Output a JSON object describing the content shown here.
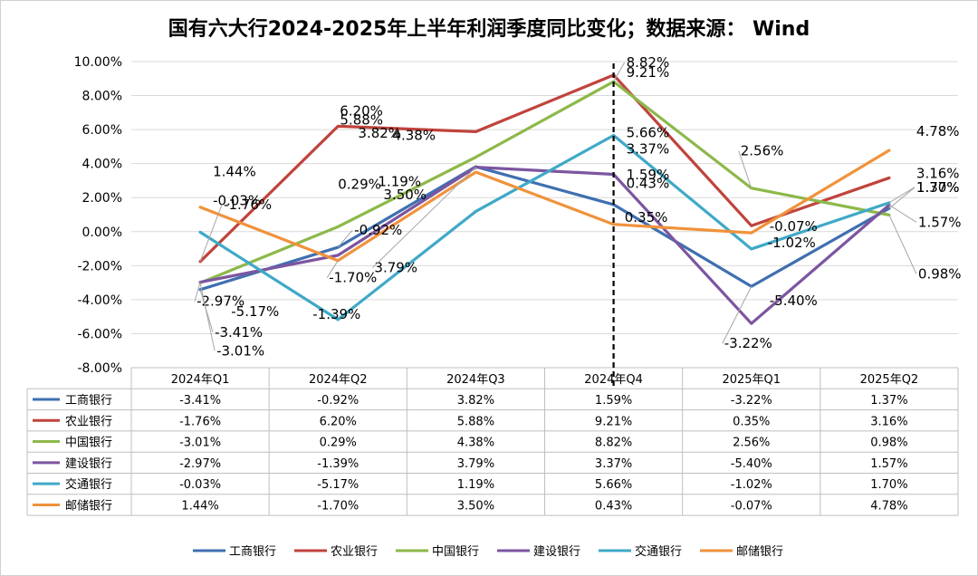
{
  "chart_data": {
    "type": "line",
    "title": "国有六大行2024-2025年上半年利润季度同比变化；数据来源： Wind",
    "categories": [
      "2024年Q1",
      "2024年Q2",
      "2024年Q3",
      "2024年Q4",
      "2025年Q1",
      "2025年Q2"
    ],
    "ylim": [
      -8,
      10
    ],
    "yticks": [
      "10.00%",
      "8.00%",
      "6.00%",
      "4.00%",
      "2.00%",
      "0.00%",
      "-2.00%",
      "-4.00%",
      "-6.00%",
      "-8.00%"
    ],
    "grid": true,
    "legend_position": "bottom",
    "series": [
      {
        "name": "工商银行",
        "color": "#3f6fb0",
        "values": [
          -3.41,
          -0.92,
          3.82,
          1.59,
          -3.22,
          1.37
        ],
        "labels": [
          "-3.41%",
          "-0.92%",
          "3.82%",
          "1.59%",
          "-3.22%",
          "1.37%"
        ]
      },
      {
        "name": "农业银行",
        "color": "#c0433c",
        "values": [
          -1.76,
          6.2,
          5.88,
          9.21,
          0.35,
          3.16
        ],
        "labels": [
          "-1.76%",
          "6.20%",
          "5.88%",
          "9.21%",
          "0.35%",
          "3.16%"
        ]
      },
      {
        "name": "中国银行",
        "color": "#8db84a",
        "values": [
          -3.01,
          0.29,
          4.38,
          8.82,
          2.56,
          0.98
        ],
        "labels": [
          "-3.01%",
          "0.29%",
          "4.38%",
          "8.82%",
          "2.56%",
          "0.98%"
        ]
      },
      {
        "name": "建设银行",
        "color": "#7c55a0",
        "values": [
          -2.97,
          -1.39,
          3.79,
          3.37,
          -5.4,
          1.57
        ],
        "labels": [
          "-2.97%",
          "-1.39%",
          "3.79%",
          "3.37%",
          "-5.40%",
          "1.57%"
        ]
      },
      {
        "name": "交通银行",
        "color": "#3fa9c7",
        "values": [
          -0.03,
          -5.17,
          1.19,
          5.66,
          -1.02,
          1.7
        ],
        "labels": [
          "-0.03%",
          "-5.17%",
          "1.19%",
          "5.66%",
          "-1.02%",
          "1.70%"
        ]
      },
      {
        "name": "邮储银行",
        "color": "#f0923b",
        "values": [
          1.44,
          -1.7,
          3.5,
          0.43,
          -0.07,
          4.78
        ],
        "labels": [
          "1.44%",
          "-1.70%",
          "3.50%",
          "0.43%",
          "-0.07%",
          "4.78%"
        ]
      }
    ]
  }
}
